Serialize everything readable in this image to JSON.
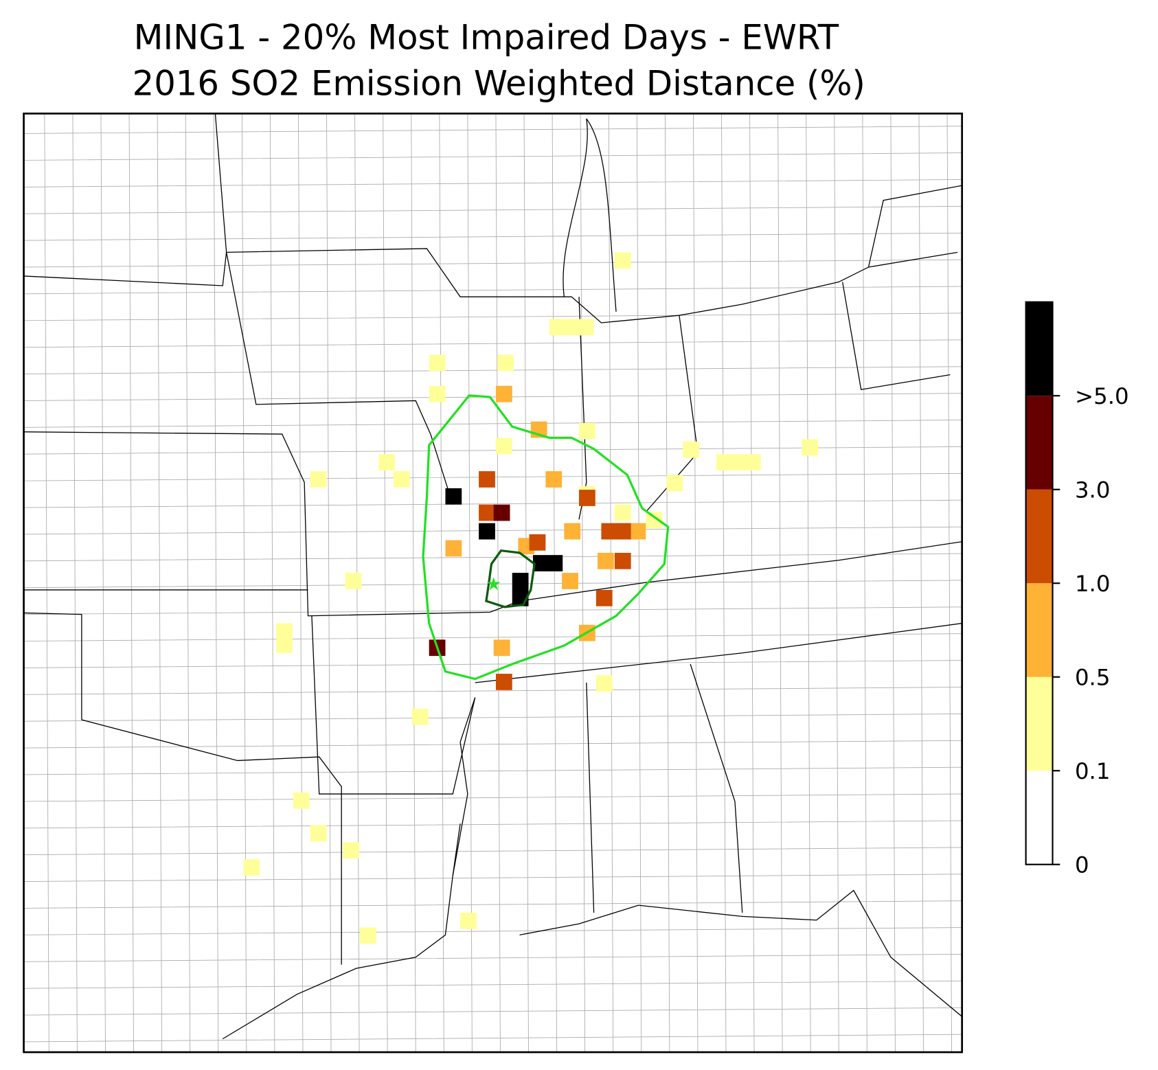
{
  "title": "MING1 - 20% Most Impaired Days - EWRT",
  "subtitle": "2016 SO2 Emission Weighted Distance (%)",
  "colorbar": {
    "ticks": [
      0,
      0.1,
      0.5,
      {
        "value": 1,
        "label": "1.0"
      },
      {
        "value": 3,
        "label": "3.0"
      },
      {
        "value": 5,
        "label": ">5.0"
      }
    ],
    "colors": [
      "#ffffff",
      "#ffff99",
      "#feb236",
      "#cc4c02",
      "#660000",
      "#000000"
    ]
  }
}
